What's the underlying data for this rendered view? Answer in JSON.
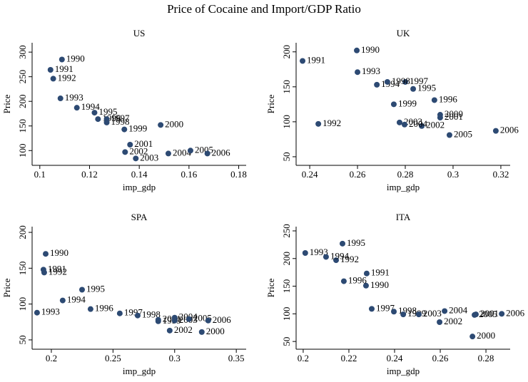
{
  "title": "Price of Cocaine and Import/GDP Ratio",
  "chart_data": [
    {
      "type": "scatter",
      "title": "US",
      "xlabel": "imp_gdp",
      "ylabel": "Price",
      "color": "#2d4a73",
      "xlim": [
        0.0969,
        0.183
      ],
      "xticks": [
        0.1,
        0.12,
        0.14,
        0.16,
        0.18
      ],
      "ylim": [
        70,
        319
      ],
      "yticks": [
        100,
        150,
        200,
        250,
        300
      ],
      "labels": [
        "1990",
        "1991",
        "1992",
        "1993",
        "1994",
        "1995",
        "1996",
        "1997",
        "1998",
        "1999",
        "2000",
        "2001",
        "2002",
        "2003",
        "2004",
        "2005",
        "2006"
      ],
      "x": [
        0.1089,
        0.1043,
        0.1054,
        0.1083,
        0.1149,
        0.122,
        0.1234,
        0.1269,
        0.1269,
        0.134,
        0.1486,
        0.1363,
        0.1343,
        0.1386,
        0.1517,
        0.1606,
        0.1674
      ],
      "y": [
        285,
        264,
        246,
        206,
        187,
        177,
        164,
        164,
        157,
        143,
        152,
        112,
        97,
        84,
        94,
        100,
        94
      ]
    },
    {
      "type": "scatter",
      "title": "UK",
      "xlabel": "imp_gdp",
      "ylabel": "Price",
      "color": "#2d4a73",
      "xlim": [
        0.2343,
        0.3239
      ],
      "xticks": [
        0.24,
        0.26,
        0.28,
        0.3,
        0.32
      ],
      "ylim": [
        37.7,
        213
      ],
      "yticks": [
        50,
        100,
        150,
        200
      ],
      "labels": [
        "1990",
        "1991",
        "1992",
        "1993",
        "1994",
        "1995",
        "1996",
        "1997",
        "1998",
        "1999",
        "2000",
        "2001",
        "2002",
        "2003",
        "2004",
        "2005",
        "2006"
      ],
      "x": [
        0.2597,
        0.237,
        0.2436,
        0.26,
        0.2681,
        0.2833,
        0.2922,
        0.28,
        0.2725,
        0.2752,
        0.2946,
        0.2946,
        0.2869,
        0.2776,
        0.2797,
        0.2985,
        0.3179
      ],
      "y": [
        202,
        187,
        97,
        171,
        153,
        147,
        131,
        157,
        157,
        125,
        110,
        106,
        94,
        99,
        96,
        81,
        87
      ]
    },
    {
      "type": "scatter",
      "title": "SPA",
      "xlabel": "imp_gdp",
      "ylabel": "Price",
      "color": "#2d4a73",
      "xlim": [
        0.1844,
        0.358
      ],
      "xticks": [
        0.2,
        0.25,
        0.3,
        0.35
      ],
      "ylim": [
        37,
        208
      ],
      "yticks": [
        50,
        100,
        150,
        200
      ],
      "labels": [
        "1990",
        "1991",
        "1992",
        "1993",
        "1994",
        "1995",
        "1996",
        "1997",
        "1998",
        "1999",
        "2000",
        "2001",
        "2002",
        "2003",
        "2004",
        "2005",
        "2006"
      ],
      "x": [
        0.1954,
        0.1936,
        0.1942,
        0.1884,
        0.2092,
        0.2249,
        0.2318,
        0.2555,
        0.27,
        0.2867,
        0.322,
        0.2867,
        0.296,
        0.3,
        0.3,
        0.3116,
        0.3272
      ],
      "y": [
        170,
        148,
        144,
        88,
        105,
        120,
        93,
        87,
        84,
        76,
        61,
        78,
        63,
        77,
        81,
        79,
        77
      ]
    },
    {
      "type": "scatter",
      "title": "ITA",
      "xlabel": "imp_gdp",
      "ylabel": "Price",
      "color": "#2d4a73",
      "xlim": [
        0.1969,
        0.2906
      ],
      "xticks": [
        0.2,
        0.22,
        0.24,
        0.26,
        0.28
      ],
      "ylim": [
        36,
        257.7
      ],
      "yticks": [
        50,
        100,
        150,
        200,
        250
      ],
      "labels": [
        "1990",
        "1991",
        "1992",
        "1993",
        "1994",
        "1995",
        "1996",
        "1997",
        "1998",
        "1999",
        "2000",
        "2001",
        "2002",
        "2003",
        "2004",
        "2005",
        "2006"
      ],
      "x": [
        0.2275,
        0.2278,
        0.2144,
        0.2009,
        0.21,
        0.2172,
        0.2178,
        0.23,
        0.2397,
        0.2438,
        0.2741,
        0.2756,
        0.2597,
        0.2506,
        0.2619,
        0.275,
        0.2869
      ],
      "y": [
        151,
        173,
        197,
        210,
        203,
        227,
        159,
        109,
        104,
        99,
        59,
        99,
        85,
        99,
        105,
        98,
        100
      ]
    }
  ]
}
